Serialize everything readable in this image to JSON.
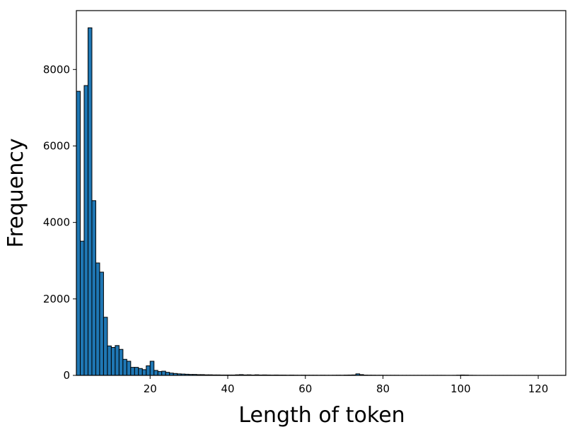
{
  "chart_data": {
    "type": "histogram",
    "xlabel": "Length of token",
    "ylabel": "Frequency",
    "bins": [
      1,
      2,
      3,
      4,
      5,
      6,
      7,
      8,
      9,
      10,
      11,
      12,
      13,
      14,
      15,
      16,
      17,
      18,
      19,
      20,
      21,
      22,
      23,
      24,
      25,
      26,
      27,
      28,
      29,
      30,
      31,
      32,
      33,
      34,
      35,
      36,
      37,
      38,
      39,
      40,
      41,
      42,
      43,
      44,
      45,
      46,
      47,
      48,
      49,
      50,
      51,
      52,
      53,
      54,
      55,
      56,
      57,
      58,
      59,
      60,
      61,
      62,
      63,
      64,
      65,
      66,
      67,
      68,
      69,
      70,
      71,
      72,
      73,
      74,
      75,
      76,
      77,
      78,
      79,
      80,
      81,
      82,
      83,
      84,
      85,
      86,
      87,
      88,
      89,
      90,
      91,
      92,
      93,
      94,
      95,
      96,
      97,
      98,
      99,
      100,
      101,
      102,
      103,
      104,
      105,
      106,
      107,
      108,
      109,
      110,
      111,
      112,
      113,
      114,
      115,
      116,
      117,
      118,
      119,
      120,
      121,
      122,
      123,
      124,
      125,
      126,
      127
    ],
    "counts": [
      7430,
      3510,
      7580,
      9090,
      4570,
      2940,
      2700,
      1520,
      770,
      730,
      780,
      680,
      420,
      370,
      210,
      210,
      180,
      150,
      250,
      370,
      130,
      100,
      110,
      80,
      60,
      50,
      40,
      35,
      30,
      25,
      25,
      20,
      20,
      15,
      15,
      12,
      12,
      10,
      10,
      10,
      10,
      15,
      20,
      12,
      15,
      10,
      15,
      10,
      12,
      10,
      8,
      10,
      8,
      8,
      6,
      8,
      6,
      5,
      6,
      5,
      5,
      5,
      4,
      5,
      4,
      4,
      5,
      6,
      5,
      8,
      10,
      12,
      40,
      20,
      8,
      6,
      5,
      4,
      4,
      3,
      3,
      3,
      3,
      2,
      2,
      2,
      2,
      2,
      2,
      2,
      2,
      2,
      2,
      2,
      2,
      1,
      1,
      2,
      5,
      10,
      8,
      3,
      2,
      1,
      1,
      1,
      1,
      1,
      1,
      1,
      1,
      1,
      1,
      1,
      1,
      1,
      1,
      1,
      1,
      1,
      1,
      1,
      1,
      1,
      1,
      1
    ],
    "color": "#1f77b4",
    "edgecolor": "#000000",
    "xlim": [
      1,
      127.1
    ],
    "xticks": [
      20,
      40,
      60,
      80,
      100,
      120
    ],
    "ylim": [
      0,
      9540
    ],
    "yticks": [
      0,
      2000,
      4000,
      6000,
      8000
    ]
  }
}
